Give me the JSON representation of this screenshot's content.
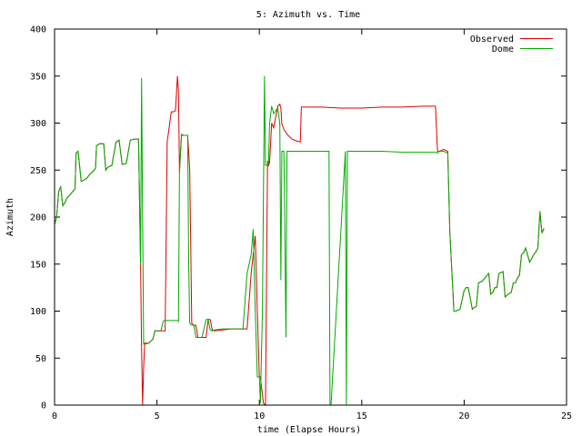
{
  "chart_data": {
    "type": "line",
    "title": "5: Azimuth vs. Time",
    "xlabel": "time (Elapse Hours)",
    "ylabel": "Azimuth",
    "xlim": [
      0,
      25
    ],
    "ylim": [
      0,
      400
    ],
    "xticks": [
      0,
      5,
      10,
      15,
      20,
      25
    ],
    "yticks": [
      0,
      50,
      100,
      150,
      200,
      250,
      300,
      350,
      400
    ],
    "grid": false,
    "legend_position": "top-right",
    "series": [
      {
        "name": "Observed",
        "color": "#dd0000",
        "x": [
          0,
          0.1,
          0.2,
          0.25,
          0.3,
          0.4,
          0.5,
          0.6,
          0.8,
          1.0,
          1.05,
          1.15,
          1.3,
          1.5,
          1.6,
          1.7,
          1.9,
          2.0,
          2.05,
          2.2,
          2.4,
          2.5,
          2.6,
          2.8,
          3.0,
          3.1,
          3.15,
          3.3,
          3.5,
          3.7,
          3.9,
          4.1,
          4.2,
          4.25,
          4.3,
          4.35,
          4.4,
          4.6,
          4.8,
          4.9,
          5.0,
          5.2,
          5.4,
          5.5,
          5.7,
          5.8,
          5.9,
          5.95,
          6.0,
          6.05,
          6.1,
          6.2,
          6.5,
          6.6,
          6.7,
          6.8,
          6.9,
          7.0,
          7.2,
          7.4,
          7.5,
          7.6,
          7.7,
          7.8,
          8.2,
          8.6,
          8.8,
          9.0,
          9.2,
          9.4,
          9.6,
          9.7,
          9.8,
          9.9,
          10.0,
          10.05,
          10.2,
          10.3,
          10.4,
          10.45,
          10.5,
          10.6,
          10.7,
          10.9,
          11.0,
          11.05,
          11.1,
          11.2,
          11.4,
          11.6,
          11.8,
          12.0,
          12.05,
          12.2,
          12.5,
          13.0,
          14.0,
          15.0,
          16.0,
          17.0,
          18.0,
          18.6,
          18.7,
          18.8,
          19.0,
          19.2,
          19.3,
          19.5,
          19.6,
          19.8,
          20.0,
          20.1,
          20.2,
          20.4,
          20.5,
          20.6,
          20.7,
          20.9,
          21.0,
          21.2,
          21.3,
          21.4,
          21.5,
          21.6,
          21.7,
          21.9,
          22.0,
          22.1,
          22.3,
          22.4,
          22.5,
          22.6,
          22.7,
          22.8,
          22.9,
          23.0,
          23.2,
          23.4,
          23.5,
          23.6,
          23.7,
          23.8,
          23.9
        ],
        "y": [
          192,
          200,
          227,
          230,
          232,
          212,
          215,
          220,
          225,
          230,
          268,
          270,
          238,
          240,
          242,
          245,
          249,
          252,
          276,
          278,
          278,
          250,
          253,
          255,
          280,
          281,
          282,
          256,
          257,
          282,
          283,
          283,
          150,
          60,
          0,
          40,
          66,
          66,
          70,
          79,
          79,
          79,
          79,
          280,
          312,
          312,
          313,
          330,
          350,
          335,
          248,
          287,
          287,
          250,
          87,
          85,
          85,
          72,
          72,
          72,
          91,
          91,
          80,
          79,
          80,
          81,
          81,
          81,
          81,
          81,
          140,
          160,
          180,
          100,
          30,
          30,
          2,
          0,
          260,
          255,
          258,
          300,
          295,
          318,
          320,
          316,
          299,
          293,
          287,
          283,
          281,
          280,
          317,
          317,
          317,
          317,
          316,
          316,
          317,
          317,
          318,
          318,
          270,
          270,
          272,
          270,
          185,
          100,
          100,
          102,
          122,
          125,
          125,
          102,
          104,
          105,
          130,
          132,
          135,
          140,
          118,
          120,
          125,
          125,
          140,
          142,
          115,
          117,
          120,
          130,
          130,
          135,
          138,
          160,
          162,
          167,
          152,
          160,
          163,
          167,
          206,
          183,
          188
        ]
      },
      {
        "name": "Dome",
        "color": "#00aa00",
        "x": [
          0,
          0.1,
          0.2,
          0.25,
          0.3,
          0.4,
          0.5,
          0.6,
          0.8,
          1.0,
          1.05,
          1.15,
          1.3,
          1.5,
          1.6,
          1.7,
          1.9,
          2.0,
          2.05,
          2.2,
          2.4,
          2.5,
          2.6,
          2.8,
          3.0,
          3.1,
          3.15,
          3.3,
          3.5,
          3.7,
          3.9,
          4.1,
          4.2,
          4.25,
          4.3,
          4.35,
          4.45,
          4.6,
          4.8,
          4.9,
          5.0,
          5.2,
          5.3,
          5.35,
          5.5,
          6.0,
          6.05,
          6.1,
          6.2,
          6.3,
          6.5,
          6.55,
          6.6,
          6.7,
          6.8,
          6.9,
          7.0,
          7.2,
          7.4,
          7.5,
          7.6,
          7.7,
          7.8,
          8.2,
          8.6,
          8.8,
          9.0,
          9.2,
          9.4,
          9.6,
          9.7,
          9.8,
          9.9,
          10.0,
          10.05,
          10.15,
          10.25,
          10.3,
          10.4,
          10.45,
          10.5,
          10.6,
          10.7,
          10.9,
          11.0,
          11.05,
          11.1,
          11.2,
          11.3,
          11.35,
          11.5,
          12.0,
          13.0,
          13.4,
          13.45,
          13.5,
          14.2,
          14.25,
          14.3,
          15.0,
          16.0,
          17.0,
          18.0,
          18.6,
          18.7,
          18.8,
          19.0,
          19.2,
          19.3,
          19.5,
          19.6,
          19.8,
          20.0,
          20.1,
          20.2,
          20.4,
          20.5,
          20.6,
          20.7,
          20.9,
          21.0,
          21.2,
          21.3,
          21.4,
          21.5,
          21.6,
          21.7,
          21.9,
          22.0,
          22.1,
          22.3,
          22.4,
          22.5,
          22.6,
          22.7,
          22.8,
          22.9,
          23.0,
          23.2,
          23.4,
          23.5,
          23.6,
          23.7,
          23.8,
          23.9
        ],
        "y": [
          192,
          200,
          227,
          230,
          232,
          212,
          215,
          220,
          225,
          230,
          268,
          270,
          238,
          240,
          242,
          245,
          249,
          252,
          276,
          278,
          278,
          250,
          253,
          255,
          280,
          281,
          282,
          256,
          257,
          282,
          283,
          283,
          150,
          348,
          200,
          65,
          65,
          66,
          70,
          79,
          79,
          79,
          89,
          90,
          90,
          90,
          89,
          250,
          288,
          287,
          287,
          150,
          87,
          85,
          85,
          72,
          72,
          72,
          91,
          91,
          80,
          79,
          80,
          81,
          81,
          81,
          81,
          81,
          140,
          160,
          187,
          100,
          30,
          30,
          2,
          100,
          350,
          255,
          255,
          258,
          300,
          318,
          310,
          316,
          299,
          133,
          270,
          270,
          72,
          270,
          270,
          270,
          270,
          270,
          0,
          0,
          270,
          0,
          270,
          270,
          270,
          269,
          269,
          269,
          268,
          270,
          270,
          268,
          185,
          100,
          100,
          102,
          122,
          125,
          125,
          102,
          104,
          105,
          130,
          132,
          135,
          140,
          118,
          120,
          125,
          125,
          140,
          142,
          115,
          117,
          120,
          130,
          130,
          135,
          138,
          160,
          162,
          167,
          152,
          160,
          163,
          167,
          206,
          183,
          188
        ]
      }
    ]
  }
}
